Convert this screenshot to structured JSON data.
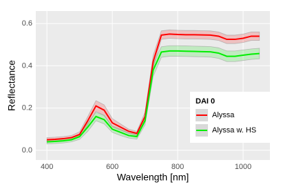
{
  "chart_data": {
    "type": "line",
    "x_label": "Wavelength [nm]",
    "y_label": "Reflectance",
    "x": [
      400,
      425,
      450,
      475,
      500,
      525,
      550,
      575,
      600,
      625,
      650,
      675,
      700,
      725,
      750,
      775,
      800,
      825,
      850,
      875,
      900,
      925,
      950,
      975,
      1000,
      1025,
      1050
    ],
    "series": [
      {
        "name": "Alyssa",
        "color": "#ff0000",
        "values": [
          0.05,
          0.052,
          0.055,
          0.06,
          0.075,
          0.14,
          0.21,
          0.19,
          0.13,
          0.11,
          0.09,
          0.08,
          0.16,
          0.42,
          0.545,
          0.55,
          0.548,
          0.547,
          0.547,
          0.546,
          0.545,
          0.54,
          0.525,
          0.525,
          0.53,
          0.54,
          0.54
        ],
        "upper": [
          0.06,
          0.062,
          0.065,
          0.07,
          0.088,
          0.16,
          0.235,
          0.215,
          0.15,
          0.125,
          0.1,
          0.09,
          0.18,
          0.45,
          0.565,
          0.57,
          0.568,
          0.567,
          0.567,
          0.566,
          0.565,
          0.56,
          0.545,
          0.545,
          0.55,
          0.56,
          0.56
        ],
        "lower": [
          0.04,
          0.042,
          0.045,
          0.05,
          0.062,
          0.12,
          0.185,
          0.165,
          0.11,
          0.095,
          0.08,
          0.07,
          0.14,
          0.39,
          0.525,
          0.53,
          0.528,
          0.527,
          0.527,
          0.526,
          0.525,
          0.52,
          0.505,
          0.505,
          0.51,
          0.52,
          0.52
        ]
      },
      {
        "name": "Alyssa w. HS",
        "color": "#00ee00",
        "values": [
          0.04,
          0.042,
          0.045,
          0.05,
          0.065,
          0.11,
          0.16,
          0.145,
          0.1,
          0.085,
          0.07,
          0.065,
          0.14,
          0.38,
          0.465,
          0.47,
          0.47,
          0.469,
          0.468,
          0.467,
          0.466,
          0.46,
          0.445,
          0.445,
          0.45,
          0.455,
          0.458
        ],
        "upper": [
          0.05,
          0.052,
          0.055,
          0.06,
          0.078,
          0.13,
          0.18,
          0.165,
          0.115,
          0.1,
          0.082,
          0.077,
          0.16,
          0.41,
          0.49,
          0.495,
          0.495,
          0.494,
          0.493,
          0.492,
          0.491,
          0.485,
          0.47,
          0.47,
          0.475,
          0.48,
          0.483
        ],
        "lower": [
          0.03,
          0.032,
          0.035,
          0.04,
          0.052,
          0.09,
          0.14,
          0.125,
          0.085,
          0.07,
          0.058,
          0.053,
          0.12,
          0.35,
          0.44,
          0.445,
          0.445,
          0.444,
          0.443,
          0.442,
          0.441,
          0.435,
          0.42,
          0.42,
          0.425,
          0.43,
          0.433
        ]
      }
    ],
    "legend_title": "DAI 0",
    "legend_position": "bottom-right",
    "xlim": [
      366,
      1082
    ],
    "xticks": [
      400,
      600,
      800,
      1000
    ],
    "ylim": [
      -0.046,
      0.659
    ],
    "yticks": [
      {
        "value": 0,
        "label": "0.0"
      },
      0.2,
      0.4,
      0.6
    ],
    "grid": true
  }
}
